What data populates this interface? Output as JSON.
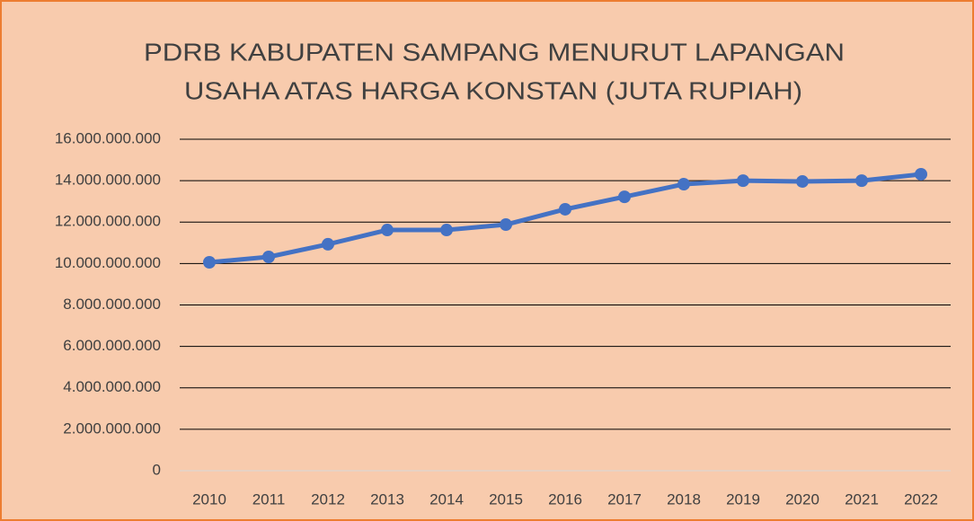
{
  "chart_data": {
    "type": "line",
    "title": [
      "PDRB KABUPATEN SAMPANG MENURUT LAPANGAN",
      "USAHA ATAS HARGA KONSTAN (JUTA RUPIAH)"
    ],
    "categories": [
      "2010",
      "2011",
      "2012",
      "2013",
      "2014",
      "2015",
      "2016",
      "2017",
      "2018",
      "2019",
      "2020",
      "2021",
      "2022"
    ],
    "series": [
      {
        "color": "#4472c4",
        "values": [
          10060000000,
          10320000000,
          10930000000,
          11620000000,
          11620000000,
          11880000000,
          12620000000,
          13220000000,
          13830000000,
          14000000000,
          13960000000,
          14000000000,
          14310000000
        ]
      }
    ],
    "ylim": [
      0,
      16000000000
    ],
    "yticks": [
      0,
      {
        "value": 2000000000,
        "label": "2.000.000.000"
      },
      {
        "value": 4000000000,
        "label": "4.000.000.000"
      },
      {
        "value": 6000000000,
        "label": "6.000.000.000"
      },
      {
        "value": 8000000000,
        "label": "8.000.000.000"
      },
      {
        "value": 10000000000,
        "label": "10.000.000.000"
      },
      {
        "value": 12000000000,
        "label": "12.000.000.000"
      },
      {
        "value": 14000000000,
        "label": "14.000.000.000"
      },
      {
        "value": 16000000000,
        "label": "16.000.000.000"
      }
    ],
    "grid": true
  }
}
